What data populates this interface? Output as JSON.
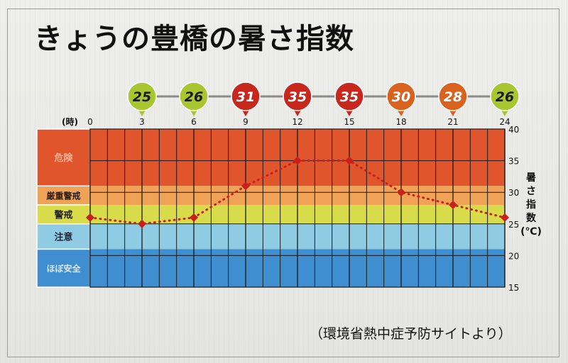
{
  "title": "きょうの豊橋の暑さ指数",
  "source_note": "（環境省熱中症予防サイトより）",
  "chart_data": {
    "type": "line",
    "x_unit_label": "(時)",
    "y_label": [
      "暑",
      "さ",
      "指",
      "数",
      "(℃)"
    ],
    "x": [
      0,
      3,
      6,
      9,
      12,
      15,
      18,
      21,
      24
    ],
    "x_ticks": [
      "0",
      "3",
      "6",
      "9",
      "12",
      "15",
      "18",
      "21",
      "24"
    ],
    "y_ticks": [
      "15",
      "20",
      "25",
      "30",
      "35",
      "40"
    ],
    "ylim": [
      15,
      40
    ],
    "series": [
      {
        "values": [
          26,
          25,
          26,
          31,
          35,
          35,
          30,
          28,
          26
        ],
        "color": "#c8201a",
        "style": "dotted"
      }
    ],
    "forecast_markers": [
      {
        "label": "25",
        "color": "#a9c52f"
      },
      {
        "label": "26",
        "color": "#a9c52f"
      },
      {
        "label": "31",
        "color": "#c8271d"
      },
      {
        "label": "35",
        "color": "#c8271d"
      },
      {
        "label": "35",
        "color": "#c8271d"
      },
      {
        "label": "30",
        "color": "#d9621f"
      },
      {
        "label": "28",
        "color": "#d9621f"
      },
      {
        "label": "26",
        "color": "#a9c52f"
      }
    ],
    "bands": [
      {
        "label": "危険",
        "from": 31,
        "to": 40,
        "color": "#e0552c",
        "label_color": "#f5b39a"
      },
      {
        "label": "厳重警戒",
        "from": 28,
        "to": 31,
        "color": "#f0a357",
        "label_color": "#2a1a10"
      },
      {
        "label": "警戒",
        "from": 25,
        "to": 28,
        "color": "#d8dc4a",
        "label_color": "#222222"
      },
      {
        "label": "注意",
        "from": 21,
        "to": 25,
        "color": "#8fcce4",
        "label_color": "#1d2a3a"
      },
      {
        "label": "ほぼ安全",
        "from": 15,
        "to": 21,
        "color": "#3f8fd0",
        "label_color": "#dbe9f7"
      }
    ],
    "grid": true
  }
}
